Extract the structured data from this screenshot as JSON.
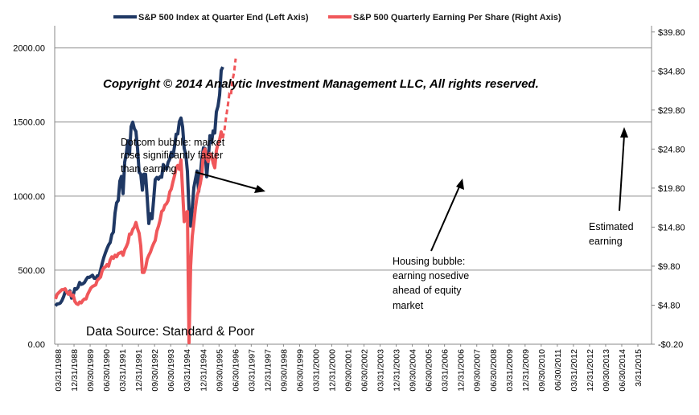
{
  "chart_data": {
    "type": "line",
    "copyright": "Copyright © 2014 Analytic Investment Management LLC, All rights reserved.",
    "source": "Data Source: Standard & Poor",
    "legend_position": "top",
    "grid": true,
    "left_axis": {
      "ylim": [
        0,
        2150
      ],
      "ticks": [
        "0.00",
        "500.00",
        "1000.00",
        "1500.00",
        "2000.00"
      ]
    },
    "right_axis": {
      "ylim": [
        -0.2,
        40.6
      ],
      "ticks": [
        "-$0.20",
        "$4.80",
        "$9.80",
        "$14.80",
        "$19.80",
        "$24.80",
        "$29.80",
        "$34.80",
        "$39.80"
      ]
    },
    "x_tick_labels": [
      "03/31/1988",
      "12/31/1988",
      "09/30/1989",
      "06/30/1990",
      "03/31/1991",
      "12/31/1991",
      "09/30/1992",
      "06/30/1993",
      "03/31/1994",
      "12/31/1994",
      "09/30/1995",
      "06/30/1996",
      "03/31/1997",
      "12/31/1997",
      "09/30/1998",
      "06/30/1999",
      "03/31/2000",
      "12/31/2000",
      "09/30/2001",
      "06/30/2002",
      "03/31/2003",
      "12/31/2003",
      "09/30/2004",
      "06/30/2005",
      "03/31/2006",
      "12/31/2006",
      "09/30/2007",
      "06/30/2008",
      "03/31/2009",
      "12/31/2009",
      "09/30/2010",
      "06/30/2011",
      "03/31/2012",
      "12/31/2012",
      "09/30/2013",
      "06/30/2014",
      "3/31/2015"
    ],
    "series": [
      {
        "name": "S&P 500 Index at Quarter End (Left Axis)",
        "axis": "left",
        "color": "#1f3864",
        "values": [
          259,
          272,
          273,
          278,
          295,
          320,
          353,
          350,
          340,
          360,
          311,
          330,
          375,
          371,
          385,
          417,
          404,
          408,
          417,
          436,
          452,
          451,
          458,
          466,
          445,
          444,
          462,
          459,
          500,
          545,
          584,
          616,
          645,
          670,
          687,
          740,
          757,
          885,
          955,
          970,
          1101,
          1133,
          1017,
          1229,
          1286,
          1373,
          1283,
          1469,
          1499,
          1455,
          1436,
          1320,
          1160,
          1148,
          1040,
          1148,
          1147,
          989,
          815,
          880,
          848,
          975,
          1112,
          1126,
          1114,
          1131,
          1127,
          1213,
          1191,
          1181,
          1228,
          1249,
          1295,
          1270,
          1335,
          1418,
          1420,
          1503,
          1527,
          1468,
          1322,
          1280,
          1166,
          903,
          798,
          919,
          1057,
          1115,
          1169,
          1031,
          1141,
          1258,
          1326,
          1321,
          1131,
          1258,
          1408,
          1362,
          1440,
          1426,
          1569,
          1606,
          1682,
          1848,
          1872
        ],
        "dashed": false
      },
      {
        "name": "S&P 500 Quarterly Earning Per Share (Right Axis)",
        "axis": "left_scaled_from_right",
        "color": "#f0575a",
        "values": [
          5.6,
          6.2,
          6.4,
          6.6,
          6.8,
          6.8,
          6.9,
          6.5,
          6.2,
          6.5,
          6.0,
          6.1,
          5.3,
          5.0,
          4.9,
          5.2,
          5.1,
          5.4,
          5.6,
          5.6,
          6.2,
          6.6,
          7.0,
          7.2,
          7.3,
          7.4,
          8.0,
          8.2,
          8.4,
          9.2,
          9.6,
          9.7,
          10.0,
          9.8,
          10.6,
          11.0,
          10.8,
          11.2,
          11.0,
          11.4,
          11.5,
          11.6,
          11.2,
          11.9,
          12.3,
          12.8,
          13.9,
          13.9,
          14.5,
          14.8,
          15.4,
          14.6,
          14.0,
          12.4,
          9.0,
          9.0,
          9.6,
          10.7,
          11.2,
          11.6,
          12.2,
          12.7,
          13.1,
          14.3,
          14.9,
          15.7,
          16.8,
          17.0,
          17.6,
          17.8,
          18.2,
          19.3,
          19.7,
          20.6,
          21.4,
          22.4,
          22.7,
          22.2,
          23.4,
          19.5,
          15.5,
          16.6,
          16.8,
          0.0,
          9.8,
          13.6,
          15.4,
          17.3,
          18.8,
          19.5,
          20.4,
          21.6,
          24.4,
          24.8,
          23.6,
          23.2,
          24.2,
          24.0,
          23.0,
          22.4,
          24.6,
          25.5,
          26.0,
          27.0,
          26.2
        ],
        "estimated": [
          26.2,
          27.2,
          28.8,
          30.2,
          31.8,
          31.6,
          33.6,
          34.6,
          36.4
        ],
        "dashed_estimate": true
      }
    ],
    "annotations": [
      {
        "lines": [
          "Dotcom bubble: market",
          "rose significantly faster",
          "than earning"
        ]
      },
      {
        "lines": [
          "Housing bubble:",
          "earning nosedive",
          "ahead of equity",
          "market"
        ]
      },
      {
        "lines": [
          "Estimated",
          "earning"
        ]
      }
    ]
  }
}
